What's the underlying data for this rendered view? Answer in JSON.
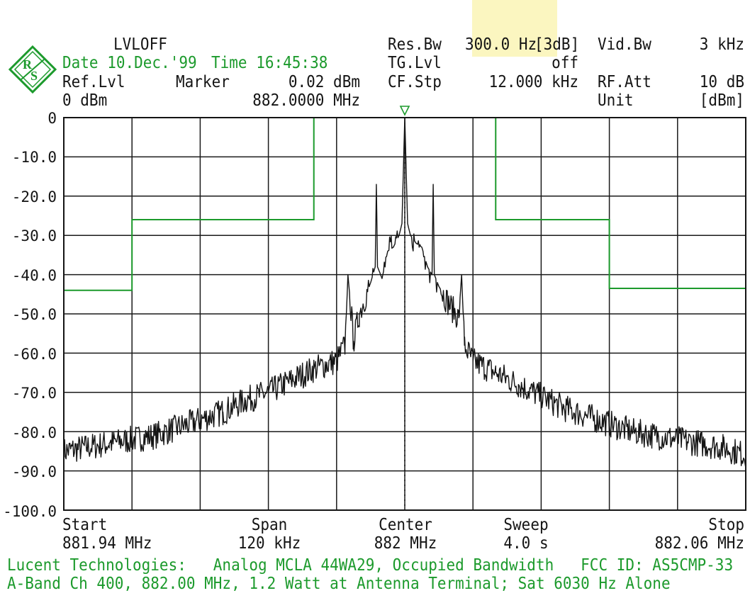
{
  "header": {
    "mode": "LVLOFF",
    "date": "Date 10.Dec.'99",
    "time": "Time 16:45:38",
    "ref_lvl_label": "Ref.Lvl",
    "ref_lvl_value": "0 dBm",
    "marker_label": "Marker",
    "marker_level": "0.02 dBm",
    "marker_freq": "882.0000 MHz",
    "res_bw_label": "Res.Bw",
    "res_bw_value": "300.0 Hz",
    "res_bw_suffix": "[3dB]",
    "tg_lvl_label": "TG.Lvl",
    "tg_lvl_value": "off",
    "cf_stp_label": "CF.Stp",
    "cf_stp_value": "12.000 kHz",
    "vid_bw_label": "Vid.Bw",
    "vid_bw_value": "3 kHz",
    "rf_att_label": "RF.Att",
    "rf_att_value": "10 dB",
    "unit_label": "Unit",
    "unit_value": "[dBm]"
  },
  "footer": {
    "start_label": "Start",
    "start_value": "881.94 MHz",
    "span_label": "Span",
    "span_value": "120 kHz",
    "center_label": "Center",
    "center_value": "882 MHz",
    "sweep_label": "Sweep",
    "sweep_value": "4.0 s",
    "stop_label": "Stop",
    "stop_value": "882.06 MHz",
    "caption_line1": "Lucent Technologies:   Analog MCLA 44WA29, Occupied Bandwidth   FCC ID: AS5CMP-33",
    "caption_line2": "A-Band Ch 400, 882.00 MHz, 1.2 Watt at Antenna Terminal; Sat 6030 Hz Alone"
  },
  "colors": {
    "trace": "#141414",
    "mask": "#1c9a2c",
    "grid": "#1a1a1a",
    "logo": "#1c9a2c",
    "highlight": "#fbf6c0"
  },
  "icons": {
    "logo": "rohde-schwarz-diamond-logo",
    "marker": "marker-triangle-icon"
  },
  "chart_data": {
    "type": "line",
    "xlim": [
      -60,
      60
    ],
    "ylim": [
      -100,
      0
    ],
    "x_unit": "kHz offset from 882 MHz",
    "y_unit": "dBm",
    "grid": true,
    "y_ticks": [
      "0",
      "-10.0",
      "-20.0",
      "-30.0",
      "-40.0",
      "-50.0",
      "-60.0",
      "-70.0",
      "-80.0",
      "-90.0",
      "-100.0"
    ],
    "marker": {
      "x": 0,
      "y": 0.02
    },
    "mask": {
      "x": [
        -60,
        -48,
        -48,
        -16,
        -16,
        16,
        16,
        36,
        36,
        60
      ],
      "y": [
        -44,
        -44,
        -26,
        -26,
        0,
        0,
        -26,
        -26,
        -43.5,
        -43.5
      ]
    },
    "series": [
      {
        "x": [
          -60,
          -56,
          -52,
          -48,
          -44,
          -40,
          -36,
          -32,
          -28,
          -24,
          -20,
          -16,
          -12,
          -10.5,
          -10,
          -9,
          -8,
          -6,
          -5.2,
          -5,
          -4.8,
          -4,
          -3,
          -2,
          -1,
          -0.5,
          0,
          0.5,
          1,
          2,
          3,
          4,
          4.8,
          5,
          5.2,
          6,
          8,
          9.5,
          10,
          10.5,
          12,
          16,
          20,
          24,
          28,
          32,
          36,
          40,
          44,
          48,
          52,
          56,
          60
        ],
        "y": [
          -85,
          -84,
          -83,
          -82,
          -81,
          -79,
          -77,
          -75,
          -72,
          -70,
          -67,
          -64,
          -62,
          -58,
          -40,
          -57,
          -50,
          -42,
          -38,
          -17,
          -38,
          -41,
          -34,
          -33,
          -30,
          -27,
          0.02,
          -27,
          -30,
          -32,
          -33,
          -38,
          -40,
          -17,
          -40,
          -43,
          -48,
          -51,
          -40,
          -58,
          -62,
          -65,
          -68,
          -71,
          -74,
          -76,
          -78,
          -80,
          -81,
          -82,
          -83,
          -84,
          -86
        ]
      }
    ]
  }
}
